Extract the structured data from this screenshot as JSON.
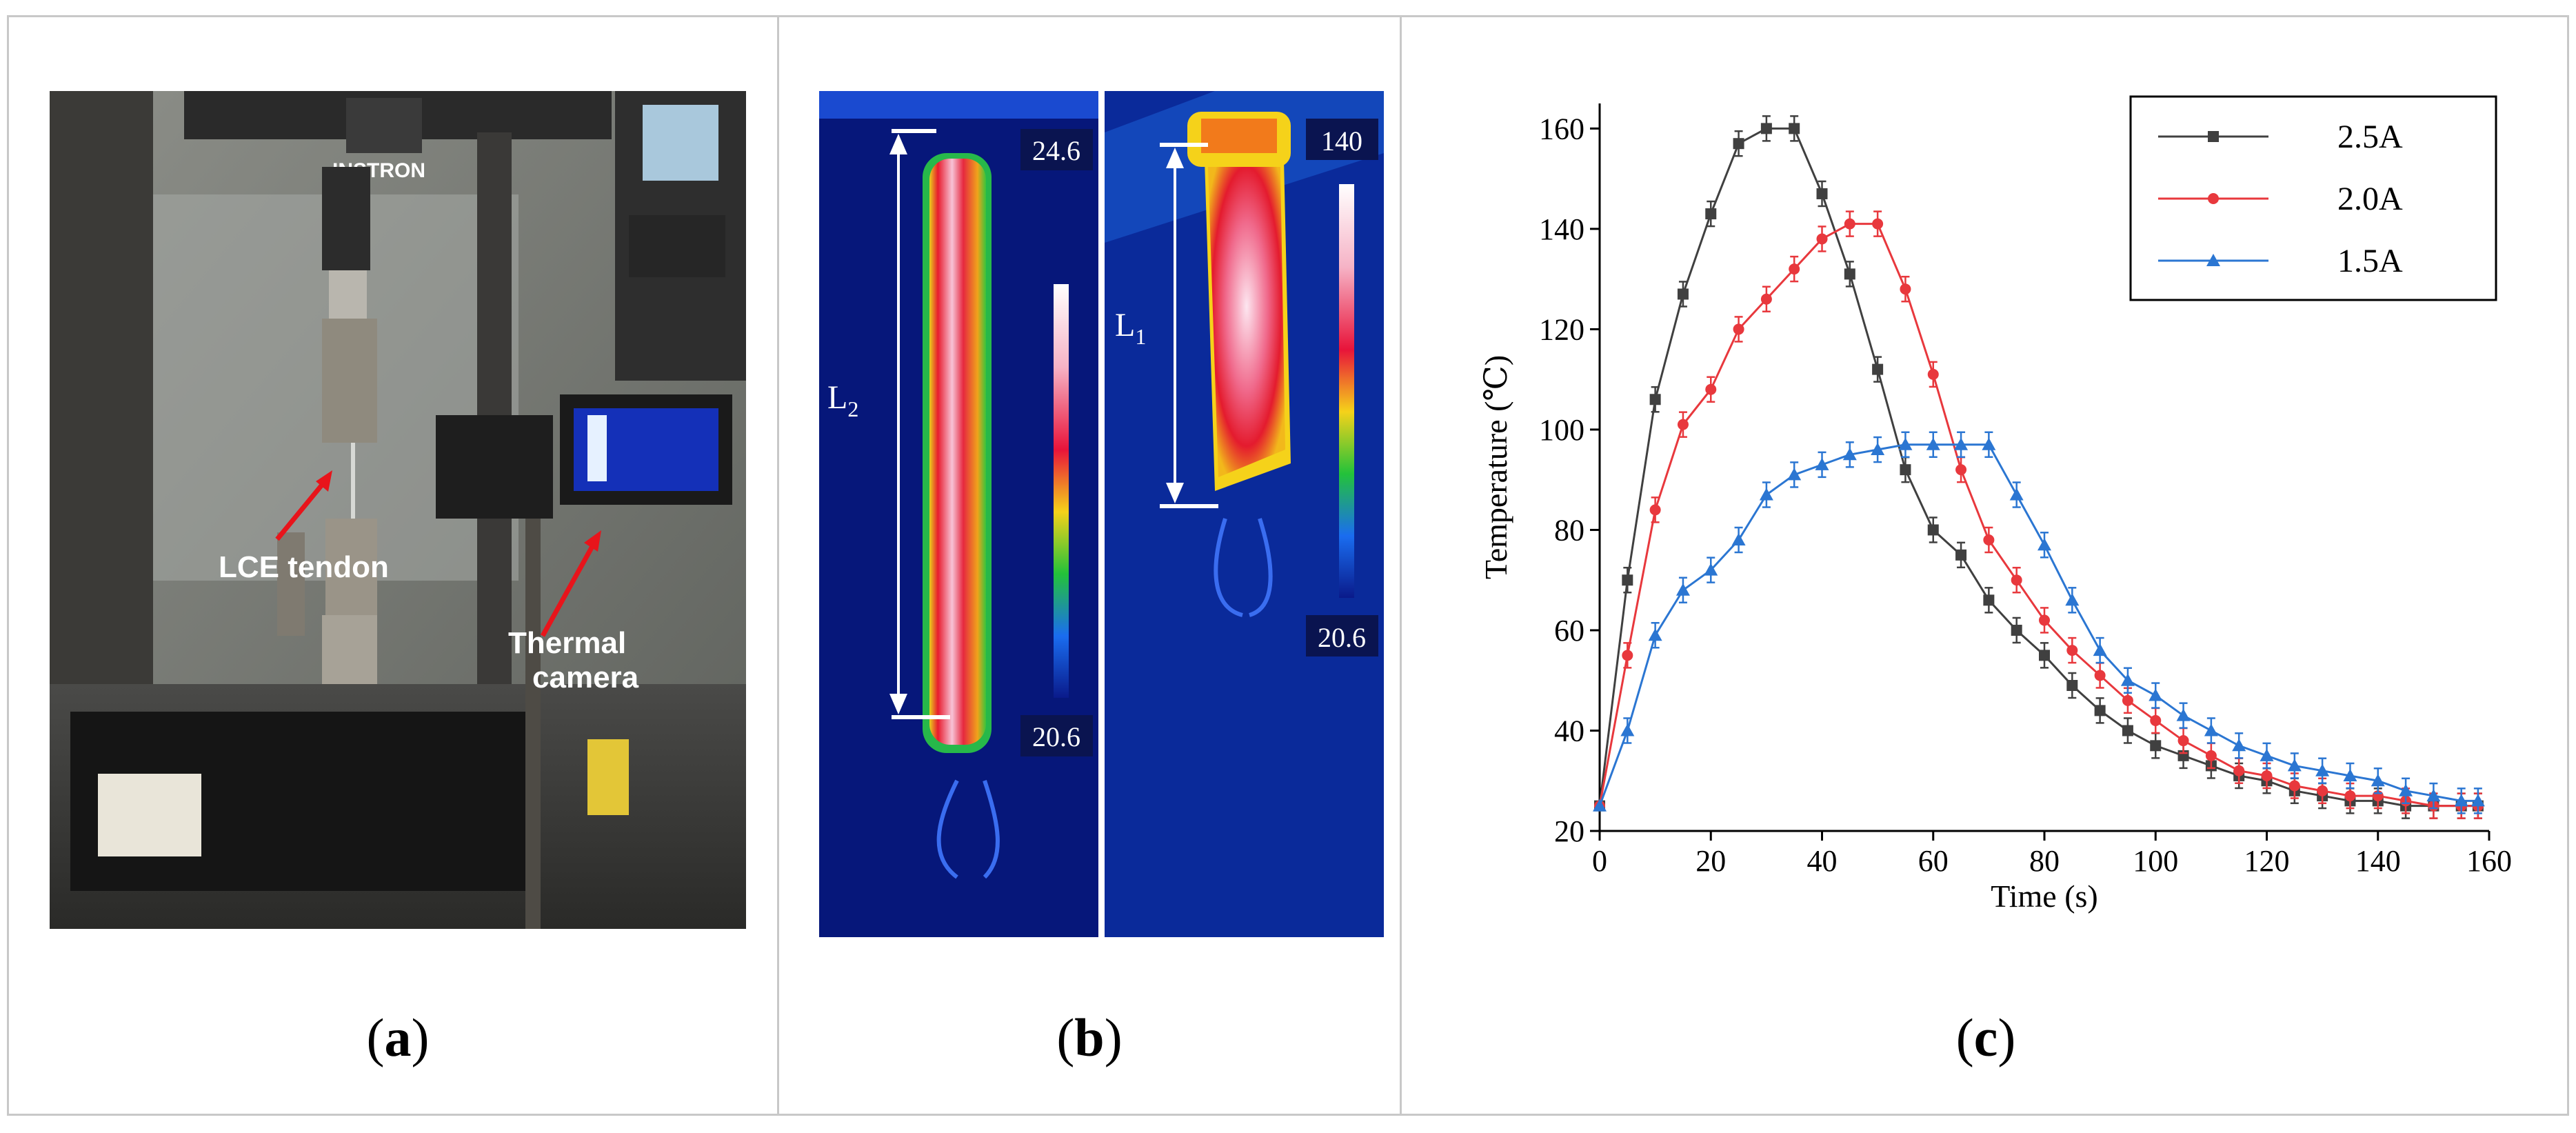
{
  "panels": {
    "a": {
      "caption": "a",
      "annotations": {
        "tendon": "LCE tendon",
        "camera_line1": "Thermal",
        "camera_line2": "camera",
        "brand": "INSTRON"
      }
    },
    "b": {
      "caption": "b",
      "left": {
        "max": "24.6",
        "min": "20.6",
        "length_label": "L",
        "length_sub": "2"
      },
      "right": {
        "max": "140",
        "min": "20.6",
        "length_label": "L",
        "length_sub": "1"
      }
    },
    "c": {
      "caption": "c"
    }
  },
  "colors": {
    "s25": "#404040",
    "s20": "#e8383d",
    "s15": "#2b76d2",
    "annotation_arrow": "#e8141b"
  },
  "chart_data": {
    "type": "line",
    "xlabel": "Time (s)",
    "ylabel": "Temperature (℃)",
    "xlim": [
      0,
      160
    ],
    "ylim": [
      20,
      165
    ],
    "xticks": [
      "0",
      "20",
      "40",
      "60",
      "80",
      "100",
      "120",
      "140",
      "160"
    ],
    "yticks": [
      "20",
      "40",
      "60",
      "80",
      "100",
      "120",
      "140",
      "160"
    ],
    "legend_position": "top-right",
    "x": [
      0,
      5,
      10,
      15,
      20,
      25,
      30,
      35,
      40,
      45,
      50,
      55,
      60,
      65,
      70,
      75,
      80,
      85,
      90,
      95,
      100,
      105,
      110,
      115,
      120,
      125,
      130,
      135,
      140,
      145,
      150,
      155,
      158
    ],
    "series": [
      {
        "name": "2.5A",
        "marker": "square",
        "values": [
          25,
          70,
          106,
          127,
          143,
          157,
          160,
          160,
          147,
          131,
          112,
          92,
          80,
          75,
          66,
          60,
          55,
          49,
          44,
          40,
          37,
          35,
          33,
          31,
          30,
          28,
          27,
          26,
          26,
          25,
          25,
          25,
          25
        ]
      },
      {
        "name": "2.0A",
        "marker": "circle",
        "values": [
          25,
          55,
          84,
          101,
          108,
          120,
          126,
          132,
          138,
          141,
          141,
          128,
          111,
          92,
          78,
          70,
          62,
          56,
          51,
          46,
          42,
          38,
          35,
          32,
          31,
          29,
          28,
          27,
          27,
          26,
          25,
          25,
          25
        ]
      },
      {
        "name": "1.5A",
        "marker": "triangle",
        "values": [
          25,
          40,
          59,
          68,
          72,
          78,
          87,
          91,
          93,
          95,
          96,
          97,
          97,
          97,
          97,
          87,
          77,
          66,
          56,
          50,
          47,
          43,
          40,
          37,
          35,
          33,
          32,
          31,
          30,
          28,
          27,
          26,
          26
        ]
      }
    ]
  }
}
